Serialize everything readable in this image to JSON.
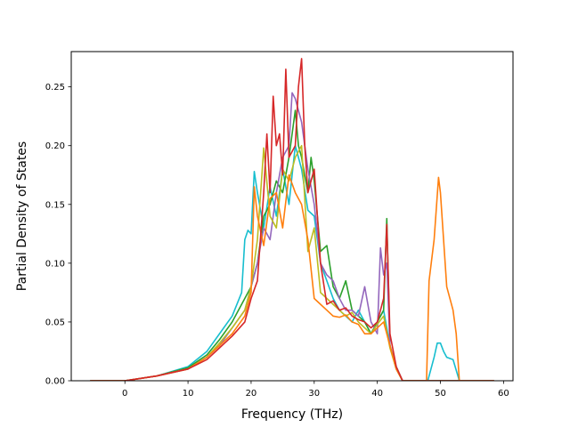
{
  "chart_data": {
    "type": "line",
    "title": "",
    "xlabel": "Frequency (THz)",
    "ylabel": "Partial Density of States",
    "xlim": [
      -8.5,
      61.5
    ],
    "ylim": [
      0,
      0.28
    ],
    "xticks": [
      0,
      10,
      20,
      30,
      40,
      50,
      60
    ],
    "yticks": [
      0.0,
      0.05,
      0.1,
      0.15,
      0.2,
      0.25
    ],
    "ytick_labels": [
      "0.00",
      "0.05",
      "0.10",
      "0.15",
      "0.20",
      "0.25"
    ],
    "grid": false,
    "legend": "none",
    "series": [
      {
        "color": "#17becf",
        "points": [
          [
            -5.5,
            0
          ],
          [
            0,
            0
          ],
          [
            5,
            0.004
          ],
          [
            10,
            0.012
          ],
          [
            13,
            0.025
          ],
          [
            15,
            0.04
          ],
          [
            17,
            0.055
          ],
          [
            18.5,
            0.075
          ],
          [
            19,
            0.12
          ],
          [
            19.5,
            0.128
          ],
          [
            20,
            0.125
          ],
          [
            20.5,
            0.178
          ],
          [
            21,
            0.16
          ],
          [
            22,
            0.13
          ],
          [
            23,
            0.165
          ],
          [
            24,
            0.14
          ],
          [
            25,
            0.18
          ],
          [
            26,
            0.15
          ],
          [
            27,
            0.2
          ],
          [
            28,
            0.18
          ],
          [
            29,
            0.145
          ],
          [
            30,
            0.14
          ],
          [
            31,
            0.1
          ],
          [
            32,
            0.085
          ],
          [
            33,
            0.07
          ],
          [
            34,
            0.06
          ],
          [
            35,
            0.055
          ],
          [
            36,
            0.05
          ],
          [
            37,
            0.06
          ],
          [
            38,
            0.05
          ],
          [
            39,
            0.04
          ],
          [
            40,
            0.05
          ],
          [
            41,
            0.06
          ],
          [
            42,
            0.03
          ],
          [
            43,
            0.012
          ],
          [
            44,
            0
          ],
          [
            48,
            0
          ],
          [
            48.5,
            0.01
          ],
          [
            49,
            0.02
          ],
          [
            49.5,
            0.032
          ],
          [
            50,
            0.032
          ],
          [
            50.5,
            0.025
          ],
          [
            51,
            0.02
          ],
          [
            52,
            0.018
          ],
          [
            53,
            0
          ],
          [
            58.5,
            0
          ]
        ]
      },
      {
        "color": "#2ca02c",
        "points": [
          [
            -5.5,
            0
          ],
          [
            0,
            0
          ],
          [
            5,
            0.004
          ],
          [
            10,
            0.011
          ],
          [
            13,
            0.022
          ],
          [
            15,
            0.035
          ],
          [
            17,
            0.05
          ],
          [
            19,
            0.07
          ],
          [
            20,
            0.08
          ],
          [
            21,
            0.1
          ],
          [
            22,
            0.14
          ],
          [
            23,
            0.15
          ],
          [
            24,
            0.17
          ],
          [
            25,
            0.16
          ],
          [
            26,
            0.19
          ],
          [
            27,
            0.23
          ],
          [
            27.5,
            0.2
          ],
          [
            28,
            0.19
          ],
          [
            29,
            0.16
          ],
          [
            29.5,
            0.19
          ],
          [
            30,
            0.17
          ],
          [
            31,
            0.11
          ],
          [
            32,
            0.115
          ],
          [
            33,
            0.08
          ],
          [
            34,
            0.07
          ],
          [
            35,
            0.085
          ],
          [
            36,
            0.06
          ],
          [
            37,
            0.055
          ],
          [
            38,
            0.05
          ],
          [
            39,
            0.04
          ],
          [
            40,
            0.05
          ],
          [
            41,
            0.06
          ],
          [
            41.5,
            0.138
          ],
          [
            42,
            0.03
          ],
          [
            43,
            0.01
          ],
          [
            44,
            0
          ],
          [
            58.5,
            0
          ]
        ]
      },
      {
        "color": "#9467bd",
        "points": [
          [
            -5.5,
            0
          ],
          [
            0,
            0
          ],
          [
            5,
            0.004
          ],
          [
            10,
            0.01
          ],
          [
            13,
            0.02
          ],
          [
            15,
            0.03
          ],
          [
            17,
            0.045
          ],
          [
            19,
            0.06
          ],
          [
            20,
            0.08
          ],
          [
            21,
            0.1
          ],
          [
            22,
            0.13
          ],
          [
            23,
            0.12
          ],
          [
            24,
            0.16
          ],
          [
            25,
            0.19
          ],
          [
            26,
            0.2
          ],
          [
            26.5,
            0.245
          ],
          [
            27,
            0.24
          ],
          [
            28,
            0.22
          ],
          [
            29,
            0.18
          ],
          [
            30,
            0.15
          ],
          [
            31,
            0.1
          ],
          [
            32,
            0.09
          ],
          [
            33,
            0.085
          ],
          [
            34,
            0.07
          ],
          [
            35,
            0.06
          ],
          [
            36,
            0.06
          ],
          [
            37,
            0.055
          ],
          [
            38,
            0.08
          ],
          [
            39,
            0.05
          ],
          [
            40,
            0.04
          ],
          [
            40.5,
            0.113
          ],
          [
            41,
            0.09
          ],
          [
            41.5,
            0.1
          ],
          [
            42,
            0.03
          ],
          [
            43,
            0.01
          ],
          [
            44,
            0
          ],
          [
            58.5,
            0
          ]
        ]
      },
      {
        "color": "#bcbd22",
        "points": [
          [
            -5.5,
            0
          ],
          [
            0,
            0
          ],
          [
            5,
            0.004
          ],
          [
            10,
            0.01
          ],
          [
            13,
            0.02
          ],
          [
            15,
            0.032
          ],
          [
            17,
            0.045
          ],
          [
            19,
            0.06
          ],
          [
            20,
            0.08
          ],
          [
            21,
            0.12
          ],
          [
            22,
            0.198
          ],
          [
            23,
            0.14
          ],
          [
            24,
            0.13
          ],
          [
            25,
            0.18
          ],
          [
            26,
            0.17
          ],
          [
            27,
            0.19
          ],
          [
            28,
            0.2
          ],
          [
            29,
            0.11
          ],
          [
            30,
            0.13
          ],
          [
            31,
            0.075
          ],
          [
            32,
            0.07
          ],
          [
            33,
            0.065
          ],
          [
            34,
            0.06
          ],
          [
            35,
            0.055
          ],
          [
            36,
            0.058
          ],
          [
            37,
            0.05
          ],
          [
            38,
            0.045
          ],
          [
            39,
            0.04
          ],
          [
            40,
            0.048
          ],
          [
            41,
            0.055
          ],
          [
            42,
            0.028
          ],
          [
            43,
            0.01
          ],
          [
            44,
            0
          ],
          [
            58.5,
            0
          ]
        ]
      },
      {
        "color": "#ff7f0e",
        "points": [
          [
            -5.5,
            0
          ],
          [
            0,
            0
          ],
          [
            5,
            0.004
          ],
          [
            10,
            0.01
          ],
          [
            13,
            0.02
          ],
          [
            15,
            0.03
          ],
          [
            17,
            0.04
          ],
          [
            19,
            0.055
          ],
          [
            20,
            0.075
          ],
          [
            20.5,
            0.165
          ],
          [
            21,
            0.14
          ],
          [
            22,
            0.115
          ],
          [
            23,
            0.155
          ],
          [
            24,
            0.16
          ],
          [
            25,
            0.13
          ],
          [
            26,
            0.175
          ],
          [
            27,
            0.16
          ],
          [
            28,
            0.15
          ],
          [
            29,
            0.12
          ],
          [
            30,
            0.07
          ],
          [
            31,
            0.065
          ],
          [
            32,
            0.06
          ],
          [
            33,
            0.055
          ],
          [
            34,
            0.054
          ],
          [
            35,
            0.056
          ],
          [
            36,
            0.05
          ],
          [
            37,
            0.048
          ],
          [
            38,
            0.04
          ],
          [
            39,
            0.04
          ],
          [
            40,
            0.045
          ],
          [
            41,
            0.05
          ],
          [
            42,
            0.03
          ],
          [
            43,
            0.01
          ],
          [
            44,
            0
          ],
          [
            47.8,
            0
          ],
          [
            48.2,
            0.085
          ],
          [
            49,
            0.12
          ],
          [
            49.7,
            0.173
          ],
          [
            50,
            0.16
          ],
          [
            51,
            0.08
          ],
          [
            52,
            0.06
          ],
          [
            52.5,
            0.04
          ],
          [
            53,
            0
          ],
          [
            58.5,
            0
          ]
        ]
      },
      {
        "color": "#d62728",
        "points": [
          [
            -5.5,
            0
          ],
          [
            0,
            0
          ],
          [
            5,
            0.004
          ],
          [
            10,
            0.01
          ],
          [
            13,
            0.018
          ],
          [
            15,
            0.028
          ],
          [
            17,
            0.038
          ],
          [
            19,
            0.05
          ],
          [
            20,
            0.07
          ],
          [
            21,
            0.085
          ],
          [
            22,
            0.16
          ],
          [
            22.5,
            0.21
          ],
          [
            23,
            0.16
          ],
          [
            23.5,
            0.242
          ],
          [
            24,
            0.2
          ],
          [
            24.5,
            0.21
          ],
          [
            25,
            0.175
          ],
          [
            25.5,
            0.265
          ],
          [
            26,
            0.19
          ],
          [
            27,
            0.2
          ],
          [
            27.5,
            0.25
          ],
          [
            28,
            0.274
          ],
          [
            28.5,
            0.2
          ],
          [
            29,
            0.16
          ],
          [
            30,
            0.18
          ],
          [
            31,
            0.1
          ],
          [
            32,
            0.065
          ],
          [
            33,
            0.068
          ],
          [
            34,
            0.06
          ],
          [
            35,
            0.062
          ],
          [
            36,
            0.055
          ],
          [
            37,
            0.052
          ],
          [
            38,
            0.05
          ],
          [
            39,
            0.045
          ],
          [
            40,
            0.05
          ],
          [
            41,
            0.07
          ],
          [
            41.5,
            0.133
          ],
          [
            42,
            0.04
          ],
          [
            43,
            0.012
          ],
          [
            44,
            0
          ],
          [
            58.5,
            0
          ]
        ]
      }
    ]
  }
}
